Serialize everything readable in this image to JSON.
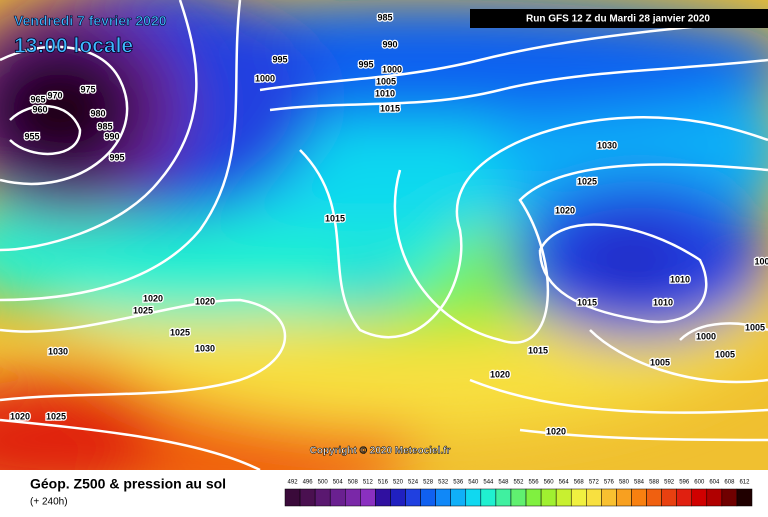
{
  "header": {
    "date": "Vendredi 7 fevrier 2020",
    "time": "13:00 locale",
    "run": "Run GFS 12 Z du Mardi 28 janvier 2020"
  },
  "copyright": "Copyright © 2020 Meteociel.fr",
  "footer": {
    "title": "Géop. Z500 & pression au sol",
    "lead": "(+ 240h)"
  },
  "isobars": {
    "labels": [
      985,
      990,
      995,
      1000,
      995,
      1000,
      1005,
      1010,
      1015,
      965,
      970,
      975,
      960,
      980,
      985,
      990,
      955,
      995,
      1030,
      1025,
      1020,
      1015,
      1010,
      1010,
      1015,
      1000,
      1005,
      1005,
      1005,
      1015,
      1020,
      1020,
      1020,
      1025,
      1020,
      1025,
      1030,
      1030,
      1020,
      1025,
      100
    ]
  },
  "scale": {
    "values": [
      492,
      496,
      500,
      504,
      508,
      512,
      516,
      520,
      524,
      528,
      532,
      536,
      540,
      544,
      548,
      552,
      556,
      560,
      564,
      568,
      572,
      576,
      580,
      584,
      588,
      592,
      596,
      600,
      604,
      608,
      612
    ],
    "colors": [
      "#3a0a3a",
      "#4a1050",
      "#5a1870",
      "#6a2090",
      "#7a28a8",
      "#8a30c0",
      "#3010a0",
      "#2020c0",
      "#2040e0",
      "#1060f0",
      "#1088f8",
      "#10b0f8",
      "#10d8f0",
      "#20f0d0",
      "#40f0a0",
      "#60f070",
      "#80f040",
      "#a0f030",
      "#c8f030",
      "#f0f040",
      "#f8e040",
      "#f8c030",
      "#f8a020",
      "#f88010",
      "#f06010",
      "#e84010",
      "#e02010",
      "#d00000",
      "#b00000",
      "#700000",
      "#200000"
    ]
  }
}
